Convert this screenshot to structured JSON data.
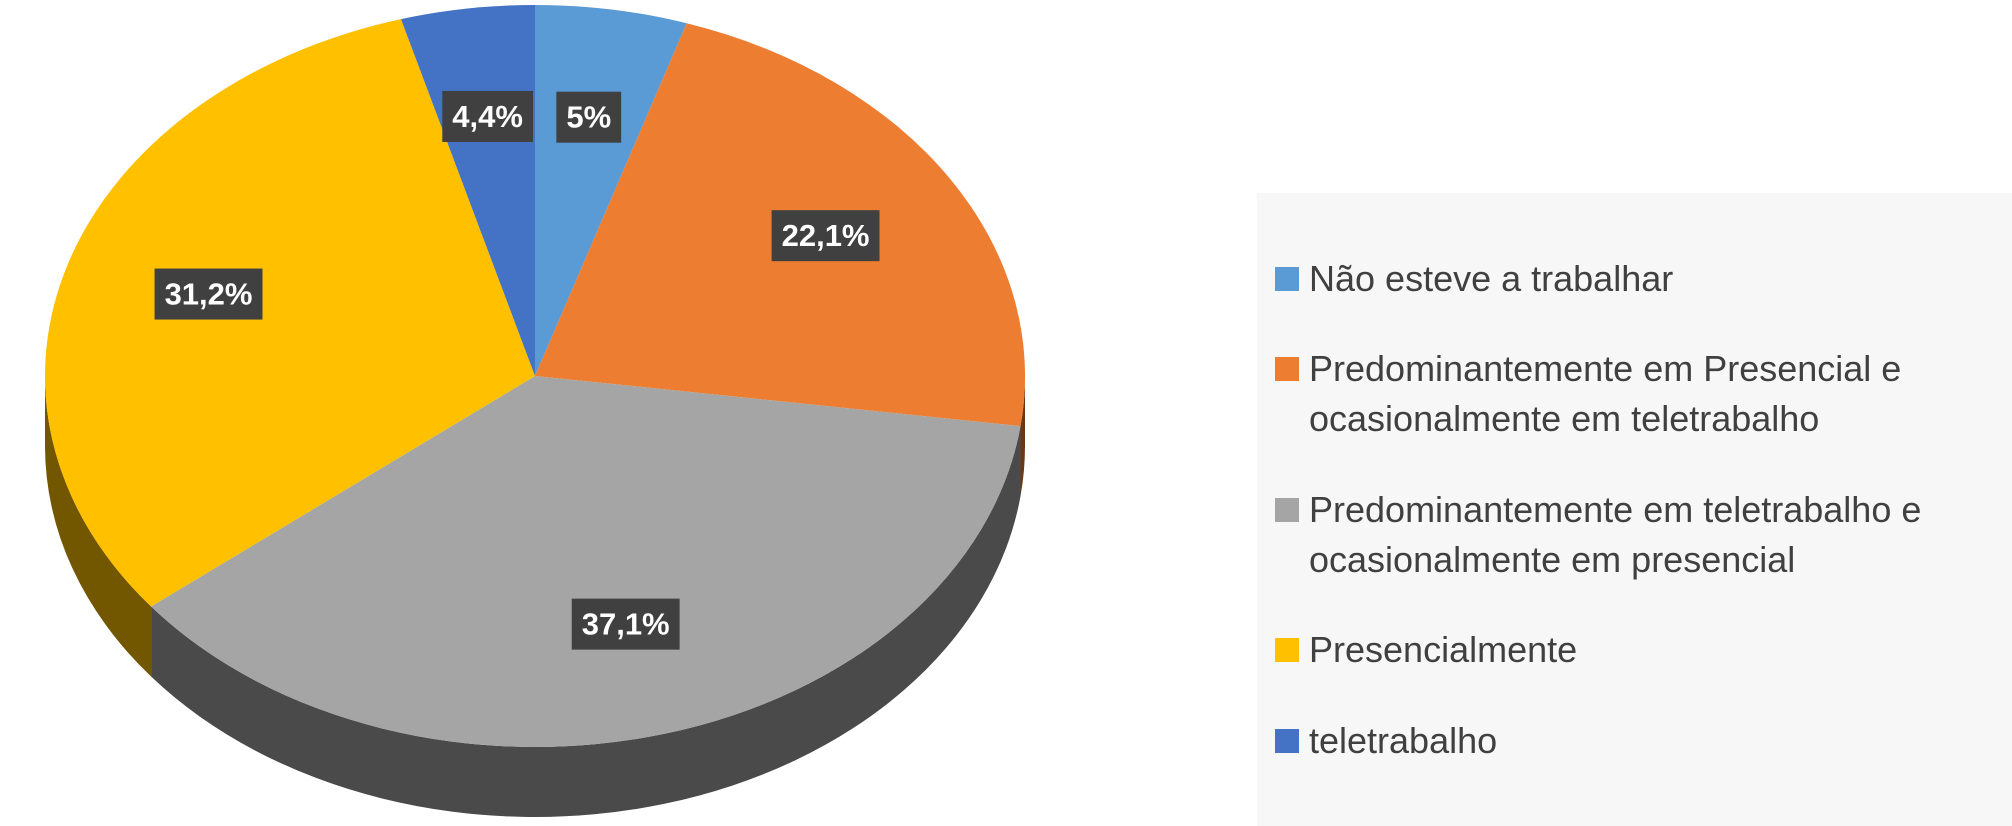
{
  "chart_data": {
    "type": "pie",
    "categories": [
      "Não esteve a trabalhar",
      "Predominantemente em Presencial e ocasionalmente em teletrabalho",
      "Predominantemente em teletrabalho e ocasionalmente em presencial",
      "Presencialmente",
      "teletrabalho"
    ],
    "values": [
      5,
      22.1,
      37.1,
      31.2,
      4.4
    ],
    "value_labels": [
      "5%",
      "22,1%",
      "37,1%",
      "31,2%",
      "4,4%"
    ],
    "colors": [
      "#5b9bd5",
      "#ed7d31",
      "#a5a5a5",
      "#ffc000",
      "#4472c4"
    ],
    "legend": "right"
  }
}
